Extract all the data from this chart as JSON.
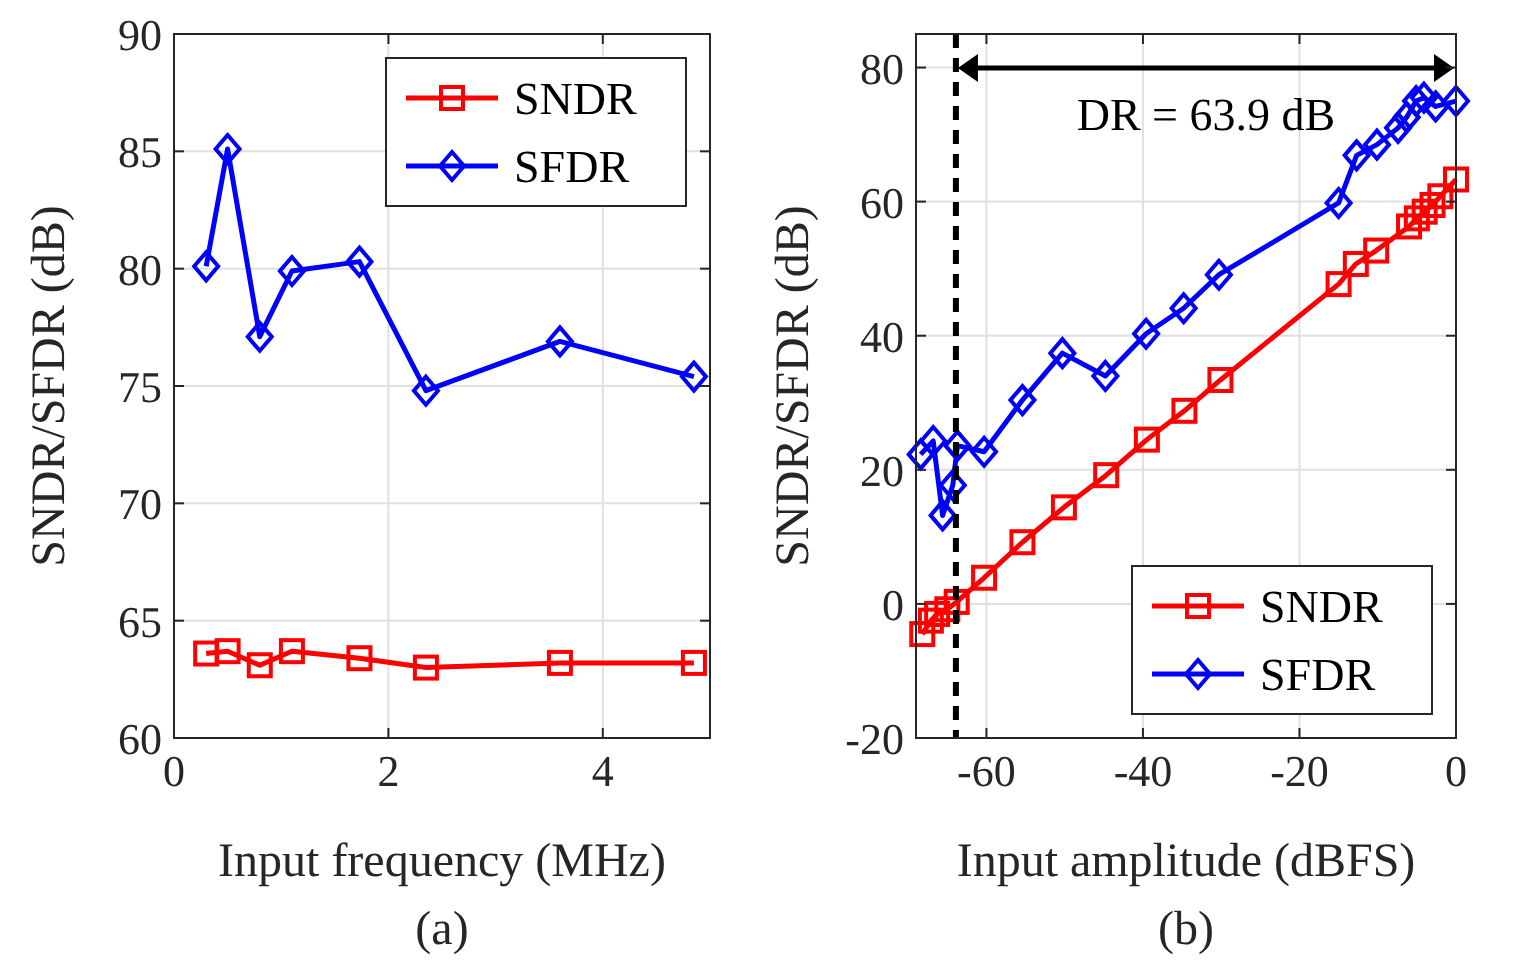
{
  "chart_data": [
    {
      "type": "line",
      "xlabel": "Input frequency (MHz)",
      "ylabel": "SNDR/SFDR (dB)",
      "annotations": [
        "(a)"
      ],
      "xlim": [
        0,
        5
      ],
      "xticks": [
        0,
        2,
        4
      ],
      "ylim": [
        60,
        90
      ],
      "yticks": [
        60,
        65,
        70,
        75,
        80,
        85,
        90
      ],
      "grid": true,
      "legend": "top right",
      "line_style": "solid",
      "series": [
        {
          "name": "SNDR",
          "color": "#ff0000",
          "marker": "square",
          "x": [
            0.3,
            0.5,
            0.8,
            1.1,
            1.73,
            2.35,
            3.6,
            4.85
          ],
          "values": [
            63.6,
            63.7,
            63.1,
            63.7,
            63.4,
            63.0,
            63.2,
            63.2
          ]
        },
        {
          "name": "SFDR",
          "color": "#0000ff",
          "marker": "diamond",
          "x": [
            0.3,
            0.5,
            0.8,
            1.1,
            1.73,
            2.35,
            3.6,
            4.85
          ],
          "values": [
            80.1,
            85.1,
            77.1,
            79.9,
            80.3,
            74.8,
            76.9,
            75.4
          ]
        }
      ]
    },
    {
      "type": "line",
      "xlabel": "Input amplitude (dBFS)",
      "ylabel": "SNDR/SFDR (dB)",
      "annotations": [
        "(b)",
        "DR = 63.9 dB"
      ],
      "xlim": [
        -69,
        0
      ],
      "xticks": [
        -60,
        -40,
        -20,
        0
      ],
      "ylim": [
        -20,
        85
      ],
      "yticks": [
        -20,
        0,
        20,
        40,
        60,
        80
      ],
      "grid": true,
      "legend": "bottom right",
      "line_style": "solid",
      "ref_lines": [
        {
          "axis": "x",
          "value": -63.9,
          "color": "#000000",
          "line_style": "dashed"
        }
      ],
      "series": [
        {
          "name": "SNDR",
          "color": "#ff0000",
          "marker": "square",
          "x": [
            -68.2,
            -67.1,
            -66.3,
            -65,
            -63.8,
            -60.3,
            -55.4,
            -50.1,
            -44.7,
            -39.5,
            -34.7,
            -30.1,
            -15,
            -12.8,
            -10.2,
            -6,
            -5,
            -4,
            -3,
            -2,
            0
          ],
          "values": [
            -4.5,
            -2.5,
            -1.5,
            -0.8,
            0.3,
            3.9,
            9.2,
            14.4,
            19.2,
            24.5,
            28.8,
            33.4,
            47.7,
            50.7,
            52.7,
            56.3,
            57.5,
            58.5,
            59.5,
            60.8,
            63.3
          ]
        },
        {
          "name": "SFDR",
          "color": "#0000ff",
          "marker": "diamond",
          "x": [
            -68.4,
            -66.8,
            -65.6,
            -64.3,
            -63.7,
            -60.3,
            -55.4,
            -50.3,
            -44.8,
            -39.6,
            -34.8,
            -30.3,
            -15,
            -12.7,
            -10.1,
            -7.4,
            -6.3,
            -5.1,
            -4.1,
            -2.6,
            0
          ],
          "values": [
            22.3,
            24.3,
            13.2,
            17.7,
            23.6,
            22.7,
            30.4,
            37.4,
            34,
            40.3,
            44.1,
            49.1,
            59.8,
            66.9,
            68.5,
            71,
            72.6,
            75,
            75.5,
            74.2,
            75
          ]
        }
      ]
    }
  ]
}
